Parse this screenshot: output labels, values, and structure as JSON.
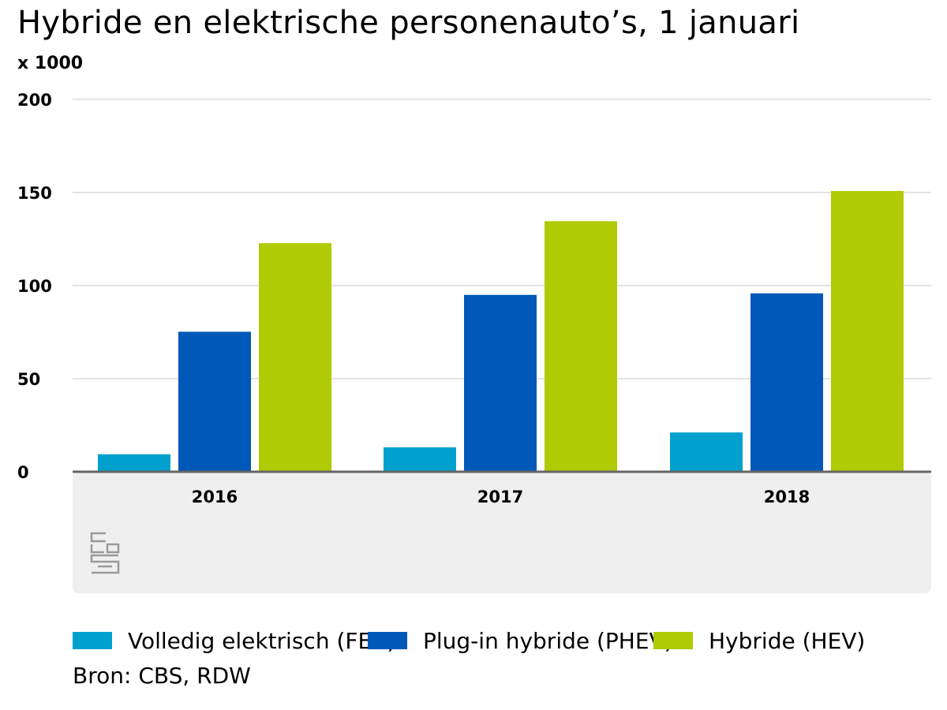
{
  "chart_data": {
    "type": "bar",
    "title": "Hybride en elektrische personenauto’s, 1 januari",
    "subtitle": "x 1000",
    "categories": [
      "2016",
      "2017",
      "2018"
    ],
    "series": [
      {
        "name": "Volledig elektrisch (FEV)",
        "color": "#00a1cd",
        "values": [
          9.4,
          13.1,
          21.1
        ]
      },
      {
        "name": "Plug-in hybride (PHEV)",
        "color": "#0058b8",
        "values": [
          75.2,
          95.0,
          95.8
        ]
      },
      {
        "name": "Hybride (HEV)",
        "color": "#afcb05",
        "values": [
          122.8,
          134.6,
          150.8
        ]
      }
    ],
    "ylim": [
      0,
      200
    ],
    "yticks": [
      "0",
      "50",
      "100",
      "150",
      "200"
    ],
    "grid": true,
    "legend_position": "bottom"
  },
  "source": "Bron: CBS, RDW",
  "logo": {
    "icon": "cbs-logo-icon",
    "text": "cbs"
  },
  "colors": {
    "grid": "#c8c8c8",
    "axis": "#666666",
    "plot_bg_bottom": "#efefef",
    "logo": "#9a9a9a"
  }
}
